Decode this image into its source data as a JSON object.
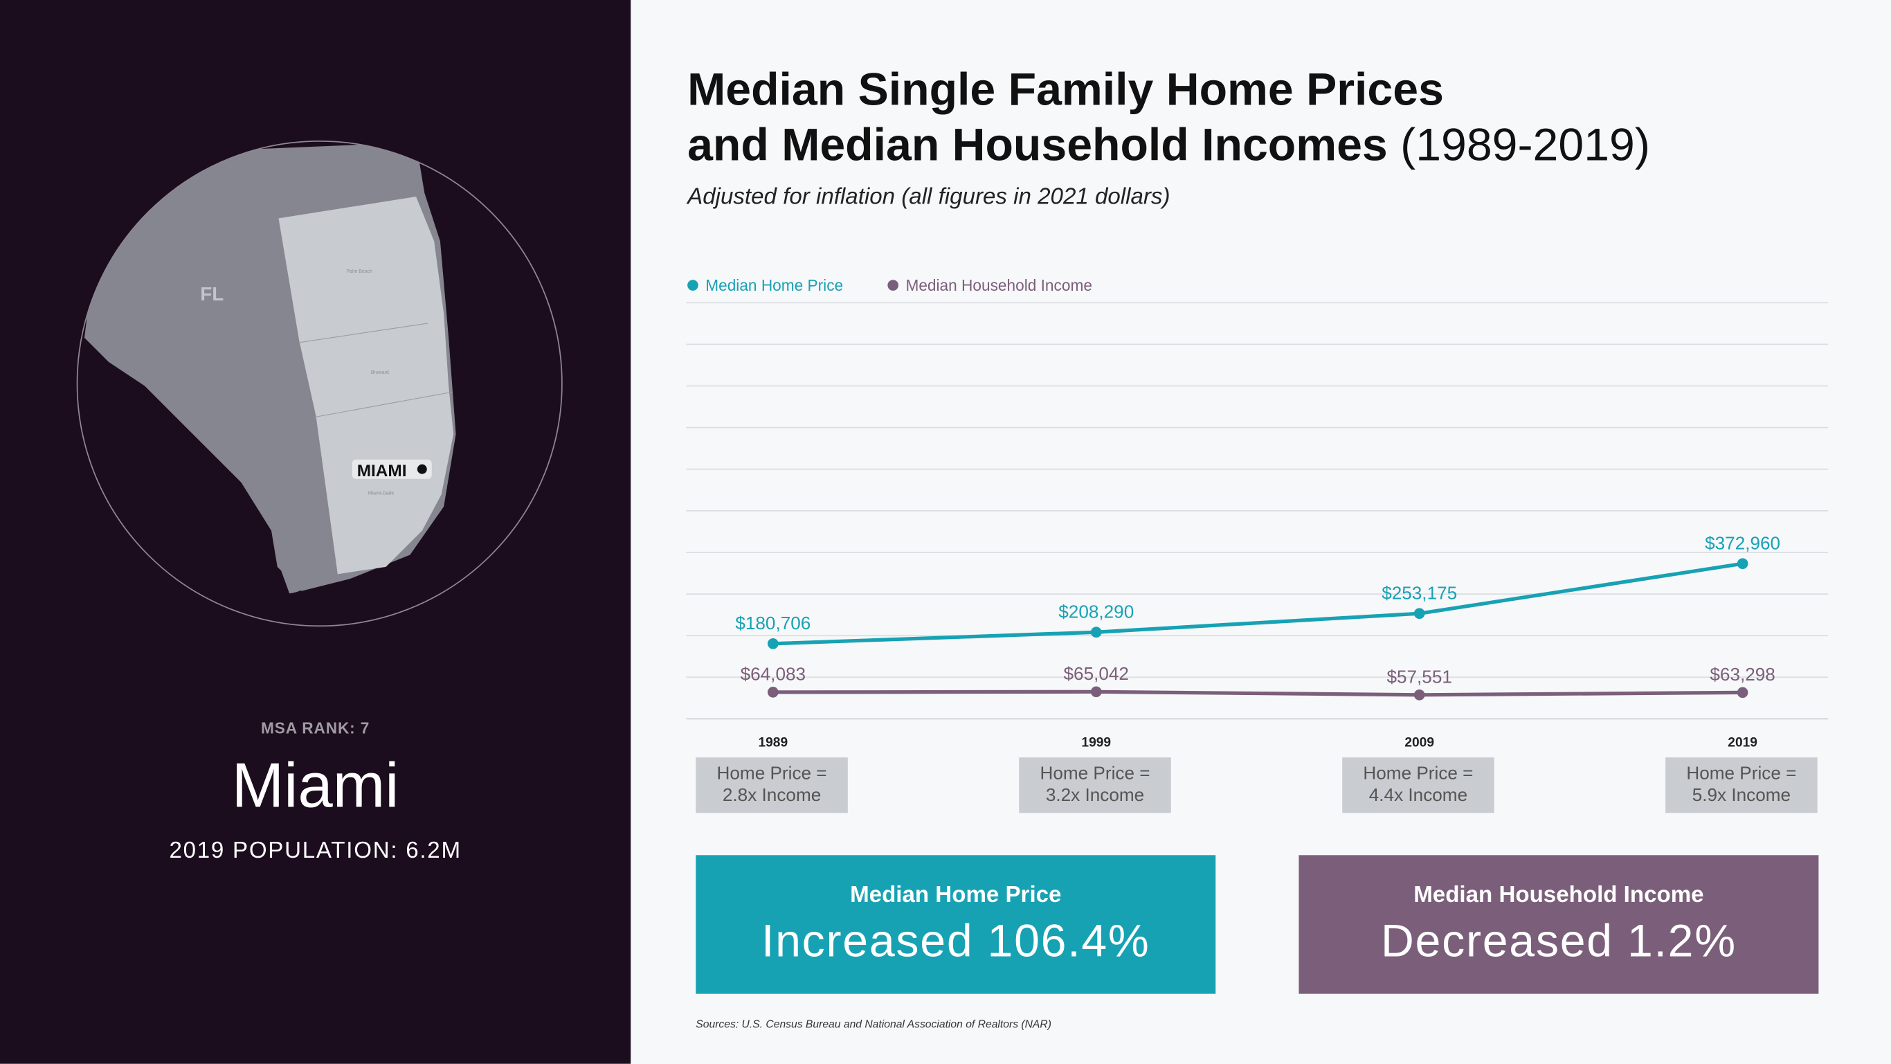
{
  "left_panel": {
    "state_label": "FL",
    "counties": [
      "Palm Beach",
      "Broward",
      "Miami-Dade"
    ],
    "city_label": "MIAMI",
    "msa_rank": "MSA RANK: 7",
    "city": "Miami",
    "population": "2019 POPULATION: 6.2M"
  },
  "header": {
    "title_line1": "Median Single Family Home Prices",
    "title_line2": "and Median Household Incomes",
    "title_years": "(1989-2019)",
    "subtitle": "Adjusted for inflation (all figures in 2021 dollars)"
  },
  "colors": {
    "home_price": "#17a2b4",
    "income": "#7b5f7a",
    "left_bg": "#1c0d1e"
  },
  "chart_data": {
    "type": "line",
    "categories": [
      "1989",
      "1999",
      "2009",
      "2019"
    ],
    "ylim": [
      0,
      1000000
    ],
    "grid": true,
    "legend_placement": "top-left",
    "series": [
      {
        "name": "Median Home Price",
        "values": [
          180706,
          208290,
          253175,
          372960
        ],
        "labels": [
          "$180,706",
          "$208,290",
          "$253,175",
          "$372,960"
        ],
        "color": "#17a2b4"
      },
      {
        "name": "Median Household Income",
        "values": [
          64083,
          65042,
          57551,
          63298
        ],
        "labels": [
          "$64,083",
          "$65,042",
          "$57,551",
          "$63,298"
        ],
        "color": "#7b5f7a"
      }
    ]
  },
  "ratios": [
    {
      "line1": "Home Price =",
      "line2": "2.8x Income"
    },
    {
      "line1": "Home Price =",
      "line2": "3.2x Income"
    },
    {
      "line1": "Home Price =",
      "line2": "4.4x Income"
    },
    {
      "line1": "Home Price =",
      "line2": "5.9x Income"
    }
  ],
  "summary": {
    "home": {
      "heading": "Median Home Price",
      "value": "Increased 106.4%"
    },
    "income": {
      "heading": "Median Household Income",
      "value": "Decreased 1.2%"
    }
  },
  "sources": "Sources: U.S. Census Bureau and National Association of Realtors (NAR)"
}
